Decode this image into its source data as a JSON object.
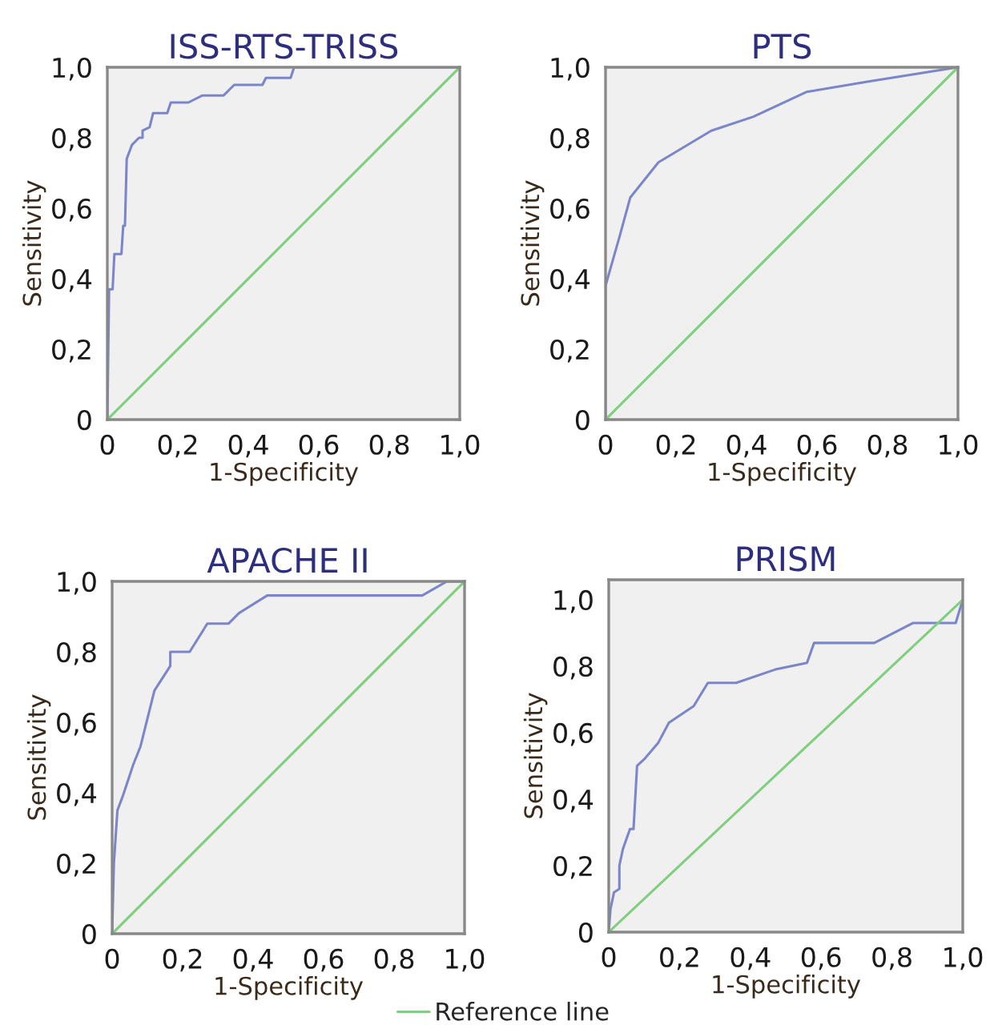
{
  "chart_data": [
    {
      "type": "line",
      "title": "ISS-RTS-TRISS",
      "xlabel": "1-Specificity",
      "ylabel": "Sensitivity",
      "xlim": [
        0,
        1
      ],
      "ylim": [
        0,
        1
      ],
      "xticks": [
        {
          "value": 0,
          "label": "0"
        },
        {
          "value": 0.2,
          "label": "0,2"
        },
        {
          "value": 0.4,
          "label": "0,4"
        },
        {
          "value": 0.6,
          "label": "0,6"
        },
        {
          "value": 0.8,
          "label": "0,8"
        },
        {
          "value": 1,
          "label": "1,0"
        }
      ],
      "yticks": [
        {
          "value": 0,
          "label": "0"
        },
        {
          "value": 0.2,
          "label": "0,2"
        },
        {
          "value": 0.4,
          "label": "0,4"
        },
        {
          "value": 0.6,
          "label": "0,6"
        },
        {
          "value": 0.8,
          "label": "0,8"
        },
        {
          "value": 1,
          "label": "1,0"
        }
      ],
      "series": [
        {
          "color": "#7b86c8",
          "x": [
            0,
            0.005,
            0.015,
            0.02,
            0.04,
            0.045,
            0.05,
            0.055,
            0.07,
            0.09,
            0.1,
            0.1,
            0.12,
            0.13,
            0.17,
            0.18,
            0.23,
            0.27,
            0.33,
            0.36,
            0.44,
            0.45,
            0.52,
            0.53,
            1
          ],
          "values": [
            0,
            0.37,
            0.37,
            0.47,
            0.47,
            0.55,
            0.55,
            0.74,
            0.78,
            0.8,
            0.8,
            0.82,
            0.83,
            0.87,
            0.87,
            0.9,
            0.9,
            0.92,
            0.92,
            0.95,
            0.95,
            0.97,
            0.97,
            1,
            1
          ]
        },
        {
          "color": "#7fcf7f",
          "x": [
            0,
            1
          ],
          "values": [
            0,
            1
          ]
        }
      ]
    },
    {
      "type": "line",
      "title": "PTS",
      "xlabel": "1-Specificity",
      "ylabel": "Sensitivity",
      "xlim": [
        0,
        1
      ],
      "ylim": [
        0,
        1
      ],
      "xticks": [
        {
          "value": 0,
          "label": "0"
        },
        {
          "value": 0.2,
          "label": "0,2"
        },
        {
          "value": 0.4,
          "label": "0,4"
        },
        {
          "value": 0.6,
          "label": "0,6"
        },
        {
          "value": 0.8,
          "label": "0,8"
        },
        {
          "value": 1,
          "label": "1,0"
        }
      ],
      "yticks": [
        {
          "value": 0,
          "label": "0"
        },
        {
          "value": 0.2,
          "label": "0,2"
        },
        {
          "value": 0.4,
          "label": "0,4"
        },
        {
          "value": 0.6,
          "label": "0,6"
        },
        {
          "value": 0.8,
          "label": "0,8"
        },
        {
          "value": 1,
          "label": "1,0"
        }
      ],
      "series": [
        {
          "color": "#7b86c8",
          "x": [
            0,
            0,
            0.04,
            0.07,
            0.15,
            0.3,
            0.42,
            0.57,
            0.75,
            1
          ],
          "values": [
            0,
            0.38,
            0.52,
            0.63,
            0.73,
            0.82,
            0.86,
            0.93,
            0.96,
            1
          ]
        },
        {
          "color": "#7fcf7f",
          "x": [
            0,
            1
          ],
          "values": [
            0,
            1
          ]
        }
      ]
    },
    {
      "type": "line",
      "title": "APACHE II",
      "xlabel": "1-Specificity",
      "ylabel": "Sensitivity",
      "xlim": [
        0,
        1
      ],
      "ylim": [
        0,
        1
      ],
      "xticks": [
        {
          "value": 0,
          "label": "0"
        },
        {
          "value": 0.2,
          "label": "0,2"
        },
        {
          "value": 0.4,
          "label": "0,4"
        },
        {
          "value": 0.6,
          "label": "0,6"
        },
        {
          "value": 0.8,
          "label": "0,8"
        },
        {
          "value": 1,
          "label": "1,0"
        }
      ],
      "yticks": [
        {
          "value": 0,
          "label": "0"
        },
        {
          "value": 0.2,
          "label": "0,2"
        },
        {
          "value": 0.4,
          "label": "0,4"
        },
        {
          "value": 0.6,
          "label": "0,6"
        },
        {
          "value": 0.8,
          "label": "0,8"
        },
        {
          "value": 1,
          "label": "1,0"
        }
      ],
      "series": [
        {
          "color": "#7b86c8",
          "x": [
            0,
            0.005,
            0.015,
            0.03,
            0.06,
            0.08,
            0.12,
            0.165,
            0.165,
            0.22,
            0.27,
            0.33,
            0.36,
            0.44,
            0.88,
            0.95,
            1
          ],
          "values": [
            0,
            0.2,
            0.35,
            0.39,
            0.48,
            0.53,
            0.69,
            0.76,
            0.8,
            0.8,
            0.88,
            0.88,
            0.91,
            0.96,
            0.96,
            1,
            1
          ]
        },
        {
          "color": "#7fcf7f",
          "x": [
            0,
            1
          ],
          "values": [
            0,
            1
          ]
        }
      ]
    },
    {
      "type": "line",
      "title": "PRISM",
      "xlabel": "1-Specificity",
      "ylabel": "Sensitivity",
      "xlim": [
        0,
        1
      ],
      "ylim": [
        0,
        1.06
      ],
      "legend": "bottom left",
      "xticks": [
        {
          "value": 0,
          "label": "0"
        },
        {
          "value": 0.2,
          "label": "0,2"
        },
        {
          "value": 0.4,
          "label": "0,4"
        },
        {
          "value": 0.6,
          "label": "0,6"
        },
        {
          "value": 0.8,
          "label": "0,8"
        },
        {
          "value": 1,
          "label": "1,0"
        }
      ],
      "yticks": [
        {
          "value": 0,
          "label": "0"
        },
        {
          "value": 0.2,
          "label": "0,2"
        },
        {
          "value": 0.4,
          "label": "0,4"
        },
        {
          "value": 0.6,
          "label": "0,6"
        },
        {
          "value": 0.8,
          "label": "0,8"
        },
        {
          "value": 1,
          "label": "1,0"
        }
      ],
      "series": [
        {
          "color": "#7b86c8",
          "x": [
            0,
            0.005,
            0.015,
            0.03,
            0.03,
            0.04,
            0.06,
            0.07,
            0.08,
            0.1,
            0.14,
            0.17,
            0.24,
            0.28,
            0.36,
            0.47,
            0.56,
            0.58,
            0.75,
            0.86,
            0.98,
            1
          ],
          "values": [
            0,
            0.07,
            0.12,
            0.13,
            0.2,
            0.25,
            0.31,
            0.31,
            0.5,
            0.52,
            0.57,
            0.63,
            0.68,
            0.75,
            0.75,
            0.79,
            0.81,
            0.87,
            0.87,
            0.93,
            0.93,
            1
          ]
        },
        {
          "name": "Reference line",
          "color": "#7fcf7f",
          "x": [
            0,
            1
          ],
          "values": [
            0,
            1
          ]
        }
      ]
    }
  ]
}
